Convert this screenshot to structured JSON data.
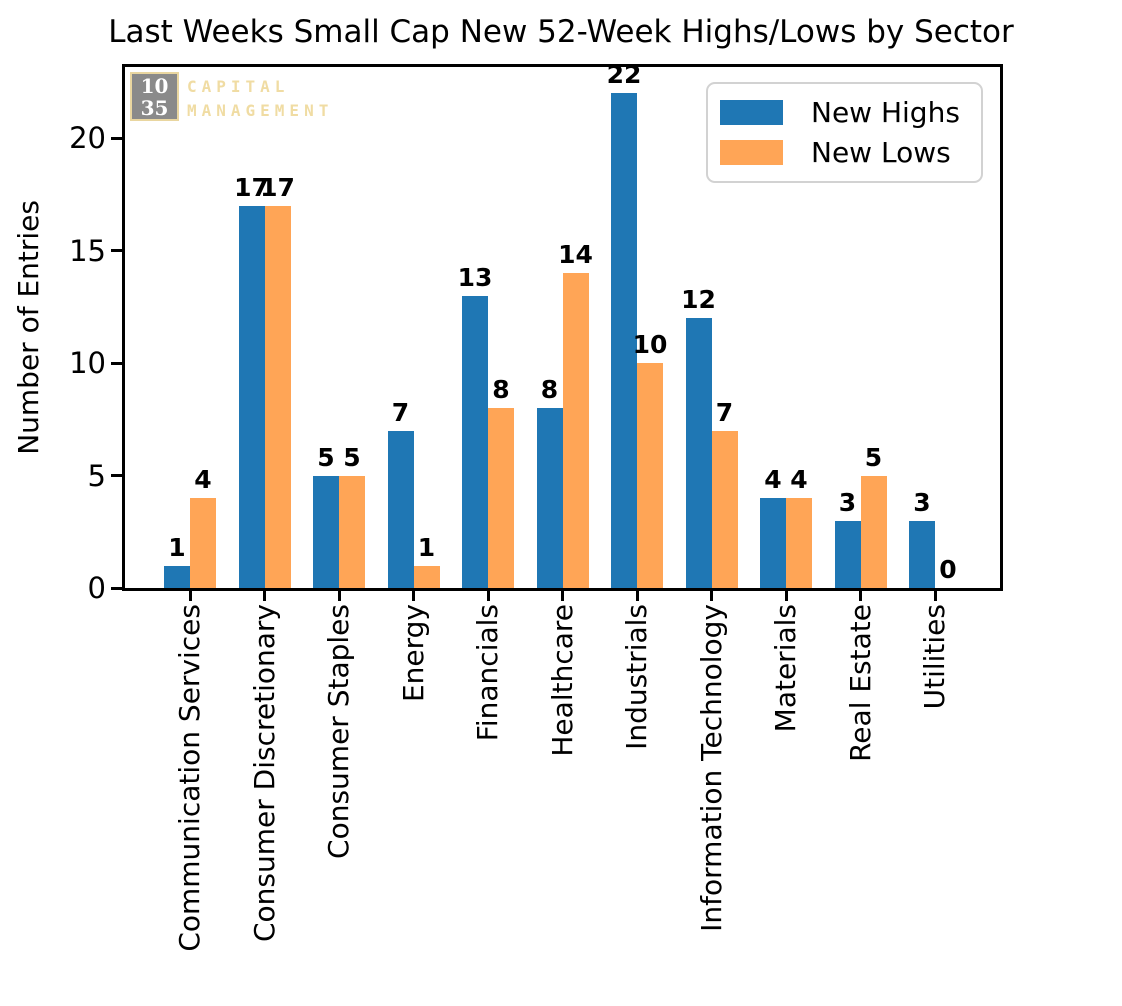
{
  "title": "Last Weeks Small Cap New 52-Week Highs/Lows by Sector",
  "logo": {
    "number_top": "10",
    "number_bottom": "35",
    "name_line1": "CAPITAL",
    "name_line2": "MANAGEMENT",
    "box_color": "#8a8a8a",
    "accent_color": "#f0dca3"
  },
  "chart_data": {
    "type": "bar",
    "title": "Last Weeks Small Cap New 52-Week Highs/Lows by Sector",
    "xlabel": "",
    "ylabel": "Number of Entries",
    "categories": [
      "Communication Services",
      "Consumer Discretionary",
      "Consumer Staples",
      "Energy",
      "Financials",
      "Healthcare",
      "Industrials",
      "Information Technology",
      "Materials",
      "Real Estate",
      "Utilities"
    ],
    "series": [
      {
        "name": "New Highs",
        "color": "#1f77b4",
        "values": [
          1,
          17,
          5,
          7,
          13,
          8,
          22,
          12,
          4,
          3,
          3
        ]
      },
      {
        "name": "New Lows",
        "color": "#ffa556",
        "values": [
          4,
          17,
          5,
          1,
          8,
          14,
          10,
          7,
          4,
          5,
          0
        ]
      }
    ],
    "yticks": [
      0,
      5,
      10,
      15,
      20
    ],
    "ylim": [
      0,
      23.2
    ],
    "grid": false,
    "legend_position": "upper right",
    "bar_value_labels": true,
    "x_tick_rotation": 90
  }
}
